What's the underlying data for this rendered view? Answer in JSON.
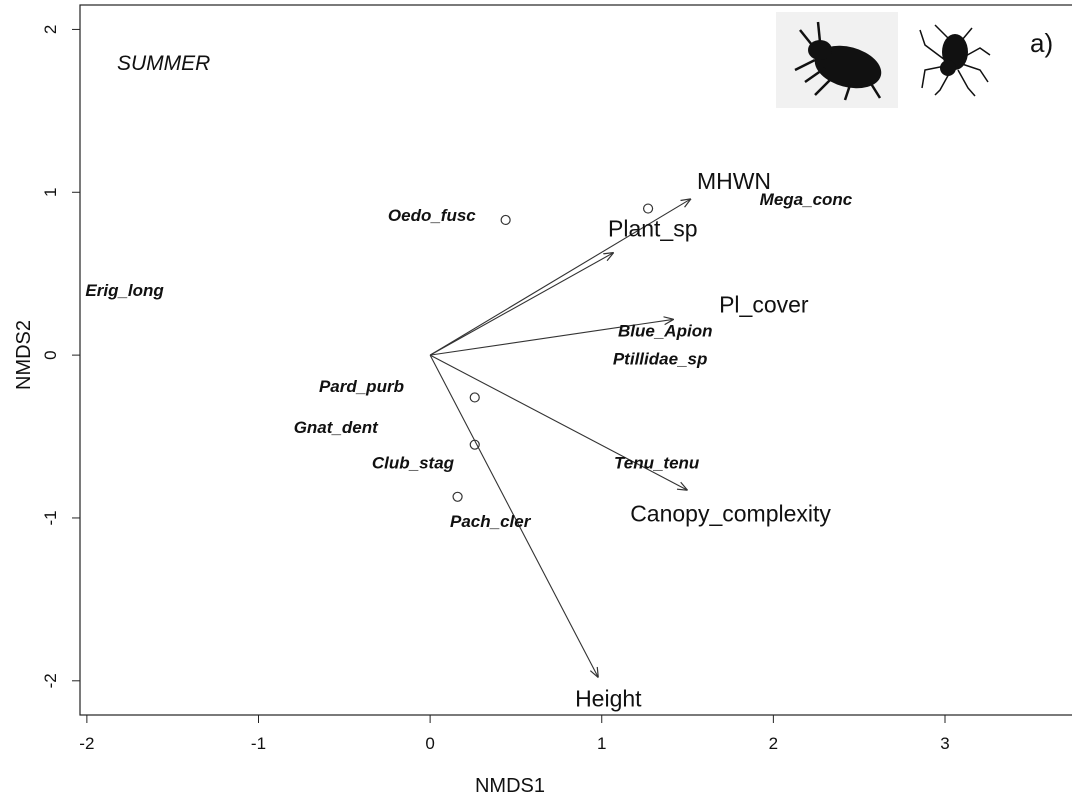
{
  "chart_data": {
    "type": "biplot",
    "annotation": "SUMMER",
    "panel_label": "a)",
    "xlabel": "NMDS1",
    "ylabel": "NMDS2",
    "xlim": [
      -2.04,
      3.74
    ],
    "ylim": [
      -2.21,
      2.15
    ],
    "xticks": [
      -2,
      -1,
      0,
      1,
      2,
      3
    ],
    "yticks": [
      -2,
      -1,
      0,
      1,
      2
    ],
    "vectors": {
      "names": [
        "MHWN",
        "Plant_sp",
        "Pl_cover",
        "Canopy_complexity",
        "Height"
      ],
      "x": [
        1.52,
        1.07,
        1.42,
        1.5,
        0.98
      ],
      "y": [
        0.96,
        0.63,
        0.22,
        -0.83,
        -1.98
      ]
    },
    "points": {
      "x": [
        0.44,
        1.27,
        0.26,
        0.26,
        0.16
      ],
      "y": [
        0.83,
        0.9,
        -0.26,
        -0.55,
        -0.87
      ]
    },
    "species": {
      "names": [
        "Oedo_fusc",
        "Mega_conc",
        "Erig_long",
        "Blue_Apion",
        "Ptillidae_sp",
        "Pard_purb",
        "Gnat_dent",
        "Club_stag",
        "Tenu_tenu",
        "Pach_cler"
      ],
      "x": [
        0.01,
        2.19,
        -1.78,
        1.37,
        1.34,
        -0.4,
        -0.55,
        -0.1,
        1.32,
        0.35
      ],
      "y": [
        0.86,
        0.96,
        0.4,
        0.15,
        -0.02,
        -0.19,
        -0.44,
        -0.66,
        -0.66,
        -1.02
      ]
    }
  }
}
